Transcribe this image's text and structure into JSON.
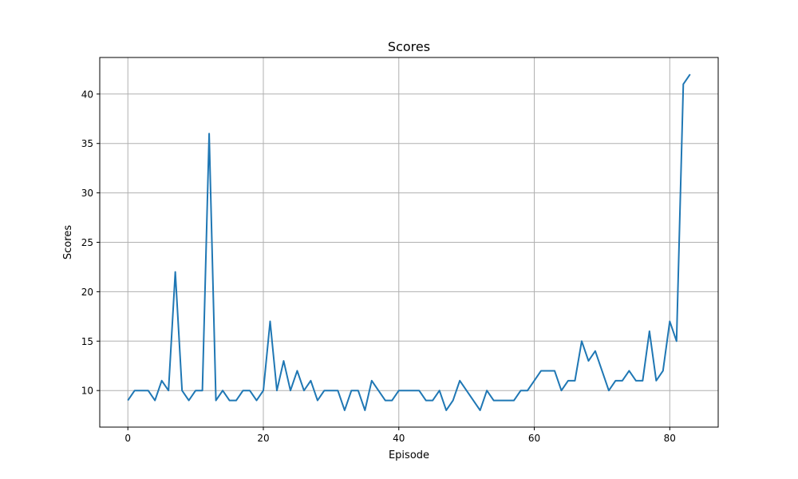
{
  "chart_data": {
    "type": "line",
    "title": "Scores",
    "xlabel": "Episode",
    "ylabel": "Scores",
    "xlim": [
      -4.15,
      87.15
    ],
    "ylim": [
      6.3,
      43.7
    ],
    "x_ticks": [
      0,
      20,
      40,
      60,
      80
    ],
    "y_ticks": [
      10,
      15,
      20,
      25,
      30,
      35,
      40
    ],
    "grid": true,
    "line_color": "#1f77b4",
    "series": [
      {
        "x": [
          0,
          1,
          2,
          3,
          4,
          5,
          6,
          7,
          8,
          9,
          10,
          11,
          12,
          13,
          14,
          15,
          16,
          17,
          18,
          19,
          20,
          21,
          22,
          23,
          24,
          25,
          26,
          27,
          28,
          29,
          30,
          31,
          32,
          33,
          34,
          35,
          36,
          37,
          38,
          39,
          40,
          41,
          42,
          43,
          44,
          45,
          46,
          47,
          48,
          49,
          50,
          51,
          52,
          53,
          54,
          55,
          56,
          57,
          58,
          59,
          60,
          61,
          62,
          63,
          64,
          65,
          66,
          67,
          68,
          69,
          70,
          71,
          72,
          73,
          74,
          75,
          76,
          77,
          78,
          79,
          80,
          81,
          82,
          83
        ],
        "values": [
          9,
          10,
          10,
          10,
          9,
          11,
          10,
          22,
          10,
          9,
          10,
          10,
          36,
          9,
          10,
          9,
          9,
          10,
          10,
          9,
          10,
          17,
          10,
          13,
          10,
          12,
          10,
          11,
          9,
          10,
          10,
          10,
          8,
          10,
          10,
          8,
          11,
          10,
          9,
          9,
          10,
          10,
          10,
          10,
          9,
          9,
          10,
          8,
          9,
          11,
          10,
          9,
          8,
          10,
          9,
          9,
          9,
          9,
          10,
          10,
          11,
          12,
          12,
          12,
          10,
          11,
          11,
          15,
          13,
          14,
          12,
          10,
          11,
          11,
          12,
          11,
          11,
          16,
          11,
          12,
          17,
          15,
          41,
          42
        ]
      }
    ]
  }
}
